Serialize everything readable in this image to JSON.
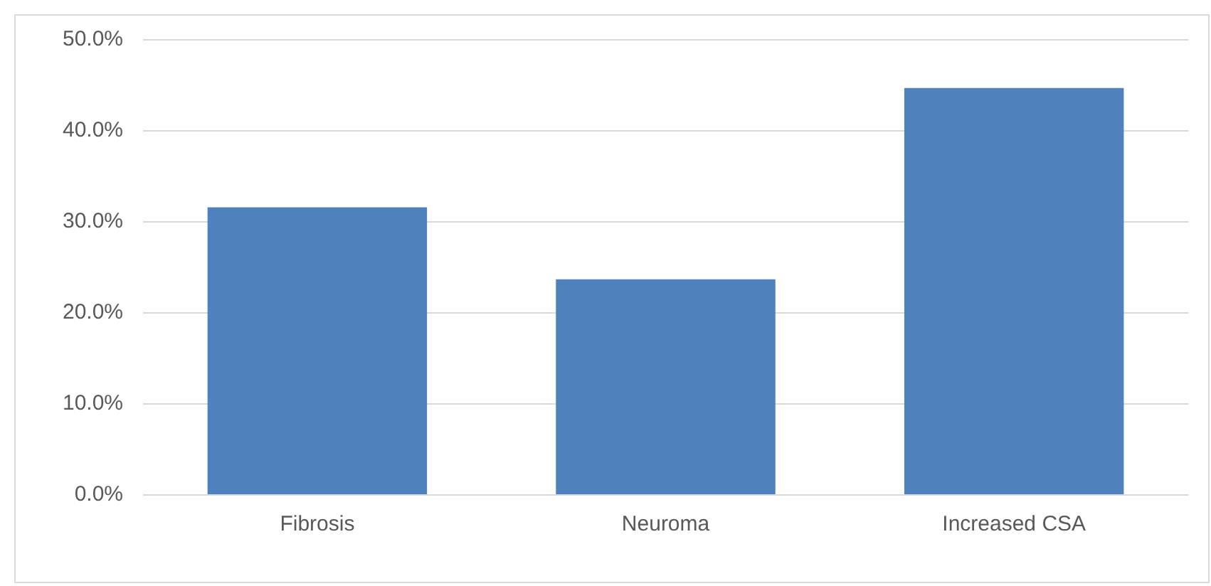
{
  "chart_data": {
    "type": "bar",
    "categories": [
      "Fibrosis",
      "Neuroma",
      "Increased CSA"
    ],
    "values": [
      31.6,
      23.7,
      44.7
    ],
    "color": "#4f81bd",
    "ylim": [
      0,
      50
    ],
    "yticks": [
      {
        "value": 0,
        "label": "0.0%"
      },
      {
        "value": 10,
        "label": "10.0%"
      },
      {
        "value": 20,
        "label": "20.0%"
      },
      {
        "value": 30,
        "label": "30.0%"
      },
      {
        "value": 40,
        "label": "40.0%"
      },
      {
        "value": 50,
        "label": "50.0%"
      }
    ],
    "grid": "y"
  }
}
